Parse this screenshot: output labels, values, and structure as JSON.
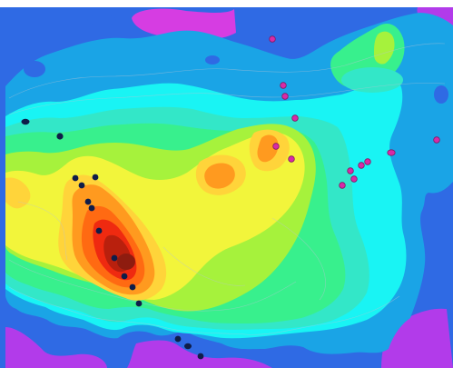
{
  "map": {
    "colors": {
      "violet": "#b23bea",
      "magenta": "#d63de2",
      "blue": "#2f6ae4",
      "sky": "#1aa4e6",
      "cyan": "#19f4f4",
      "aquamarine": "#33e7c8",
      "green": "#38f08d",
      "lime": "#a6f23c",
      "yellow": "#f2f53b",
      "gold": "#ffd43a",
      "orange": "#ff9a1f",
      "orange_red": "#ff6a12",
      "red": "#ef2a10",
      "dark_red": "#b9200d",
      "maroon": "#8e1c0f",
      "contour_line": "#b8c3d4",
      "marker_navy": "#0f1d49",
      "marker_magenta": "#d92aa7",
      "marker_stroke": "#7f1c61"
    },
    "contour_levels": [
      "violet",
      "blue",
      "sky",
      "cyan",
      "aquamarine",
      "green",
      "lime",
      "yellow",
      "gold",
      "orange",
      "orange_red",
      "red",
      "dark_red",
      "maroon"
    ],
    "marker_groups": [
      "navy",
      "magenta"
    ]
  }
}
